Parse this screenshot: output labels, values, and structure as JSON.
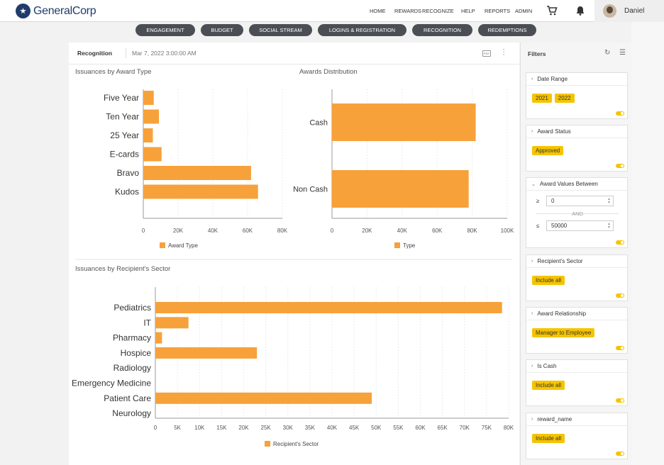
{
  "header": {
    "brand": "GeneralCorp",
    "nav": [
      "HOME",
      "REWARDS",
      "RECOGNIZE",
      "HELP",
      "REPORTS",
      "ADMIN"
    ],
    "user_name": "Daniel",
    "icons": [
      "logo-star-icon",
      "cart-icon",
      "bell-icon",
      "avatar"
    ]
  },
  "tabs": [
    "ENGAGEMENT",
    "BUDGET",
    "SOCIAL STREAM",
    "LOGINS & REGISTRATION",
    "RECOGNITION",
    "REDEMPTIONS"
  ],
  "dashboard": {
    "title": "Recognition",
    "date": "Mar 7, 2022 3:00:00 AM",
    "pdf_label": "PDF"
  },
  "colors": {
    "bar": "#f7a13a",
    "chip": "#f5c400",
    "pill": "#4b4f55"
  },
  "chart_data": [
    {
      "type": "bar",
      "orientation": "horizontal",
      "title": "Issuances by Award Type",
      "categories": [
        "Five Year",
        "Ten Year",
        "25 Year",
        "E-cards",
        "Bravo",
        "Kudos"
      ],
      "values": [
        6000,
        9000,
        5500,
        10500,
        62000,
        66000
      ],
      "xlim": [
        0,
        80000
      ],
      "ticks": [
        "0",
        "20K",
        "40K",
        "60K",
        "80K"
      ],
      "legend": "Award Type",
      "legend_position": "bottom",
      "grid": true
    },
    {
      "type": "bar",
      "orientation": "horizontal",
      "title": "Awards Distribution",
      "categories": [
        "Cash",
        "Non Cash"
      ],
      "values": [
        82000,
        78000
      ],
      "xlim": [
        0,
        100000
      ],
      "ticks": [
        "0",
        "20K",
        "40K",
        "60K",
        "80K",
        "100K"
      ],
      "legend": "Type",
      "legend_position": "bottom",
      "grid": true
    },
    {
      "type": "bar",
      "orientation": "horizontal",
      "title": "Issuances by Recipient's Sector",
      "categories": [
        "Pediatrics",
        "IT",
        "Pharmacy",
        "Hospice",
        "Radiology",
        "Emergency Medicine",
        "Patient Care",
        "Neurology"
      ],
      "values": [
        78500,
        7500,
        1500,
        23000,
        0,
        0,
        49000,
        0
      ],
      "xlim": [
        0,
        80000
      ],
      "ticks": [
        "0",
        "5K",
        "10K",
        "15K",
        "20K",
        "25K",
        "30K",
        "35K",
        "40K",
        "45K",
        "50K",
        "55K",
        "60K",
        "65K",
        "70K",
        "75K",
        "80K"
      ],
      "legend": "Recipient's Sector",
      "legend_position": "bottom",
      "grid": true
    }
  ],
  "filters": {
    "title": "Filters",
    "cards": [
      {
        "label": "Date Range",
        "chips": [
          "2021",
          "2022"
        ]
      },
      {
        "label": "Award Status",
        "chips": [
          "Approved"
        ]
      },
      {
        "label": "Award Values Between",
        "min_op": "≥",
        "min": "0",
        "and": "AND",
        "max_op": "≤",
        "max": "50000"
      },
      {
        "label": "Recipient's Sector",
        "chips": [
          "Include all"
        ]
      },
      {
        "label": "Award Relationship",
        "chips": [
          "Manager to Employee"
        ]
      },
      {
        "label": "Is Cash",
        "chips": [
          "Include all"
        ]
      },
      {
        "label": "reward_name",
        "chips": [
          "Include all"
        ]
      }
    ]
  }
}
